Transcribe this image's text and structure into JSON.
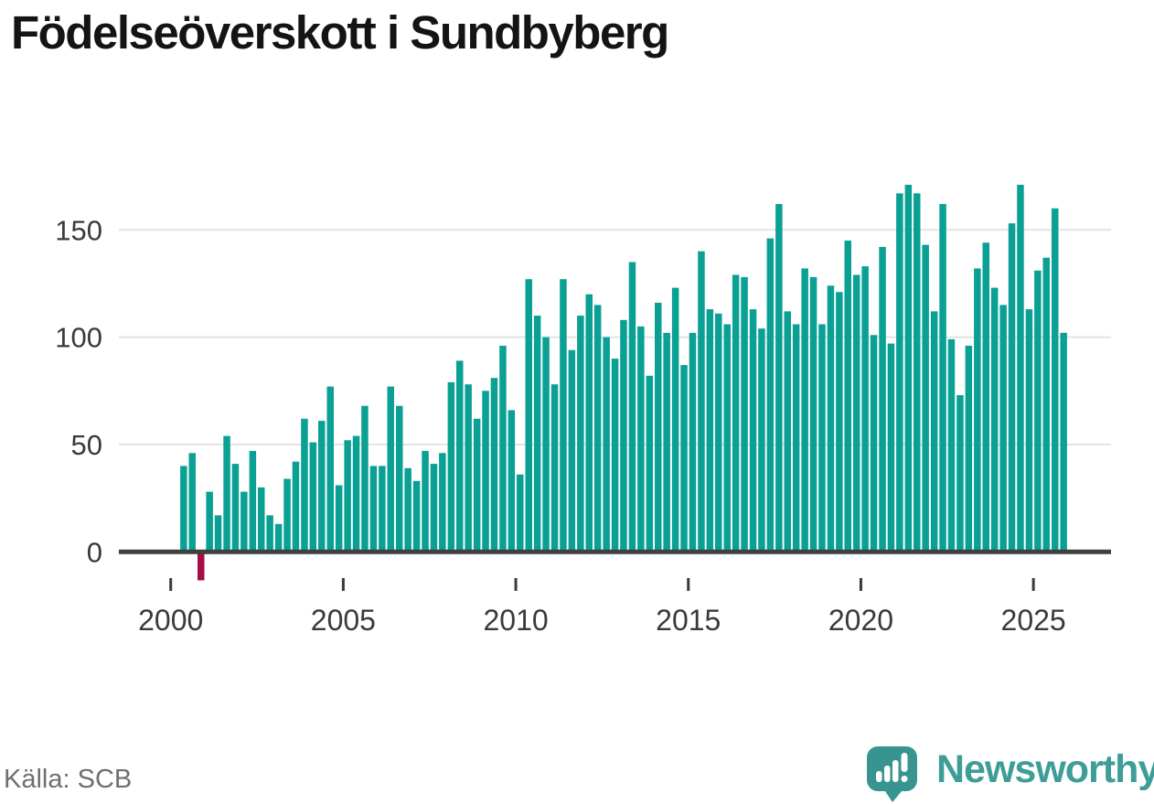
{
  "title": "Födelseöverskott i Sundbyberg",
  "source": "Källa: SCB",
  "brand": {
    "name": "Newsworthy"
  },
  "colors": {
    "bar_positive": "#0aa094",
    "bar_negative": "#a40d45",
    "grid": "#e4e4e4",
    "axis_line": "#404040",
    "axis_text": "#3a3a3a",
    "title_text": "#141414",
    "source_text": "#6f6f6f",
    "brand_teal": "#3f9d97",
    "brand_icon_teal": "#37948e"
  },
  "chart_data": {
    "type": "bar",
    "title": "Födelseöverskott i Sundbyberg",
    "xlabel": "",
    "ylabel": "",
    "frequency": "quarterly",
    "grid": true,
    "legend": "none",
    "ylim": [
      -15,
      180
    ],
    "yticks": [
      0,
      50,
      100,
      150
    ],
    "xticks": [
      2000,
      2005,
      2010,
      2015,
      2020,
      2025
    ],
    "x": [
      "2000Q2",
      "2000Q3",
      "2000Q4",
      "2001Q1",
      "2001Q2",
      "2001Q3",
      "2001Q4",
      "2002Q1",
      "2002Q2",
      "2002Q3",
      "2002Q4",
      "2003Q1",
      "2003Q2",
      "2003Q3",
      "2003Q4",
      "2004Q1",
      "2004Q2",
      "2004Q3",
      "2004Q4",
      "2005Q1",
      "2005Q2",
      "2005Q3",
      "2005Q4",
      "2006Q1",
      "2006Q2",
      "2006Q3",
      "2006Q4",
      "2007Q1",
      "2007Q2",
      "2007Q3",
      "2007Q4",
      "2008Q1",
      "2008Q2",
      "2008Q3",
      "2008Q4",
      "2009Q1",
      "2009Q2",
      "2009Q3",
      "2009Q4",
      "2010Q1",
      "2010Q2",
      "2010Q3",
      "2010Q4",
      "2011Q1",
      "2011Q2",
      "2011Q3",
      "2011Q4",
      "2012Q1",
      "2012Q2",
      "2012Q3",
      "2012Q4",
      "2013Q1",
      "2013Q2",
      "2013Q3",
      "2013Q4",
      "2014Q1",
      "2014Q2",
      "2014Q3",
      "2014Q4",
      "2015Q1",
      "2015Q2",
      "2015Q3",
      "2015Q4",
      "2016Q1",
      "2016Q2",
      "2016Q3",
      "2016Q4",
      "2017Q1",
      "2017Q2",
      "2017Q3",
      "2017Q4",
      "2018Q1",
      "2018Q2",
      "2018Q3",
      "2018Q4",
      "2019Q1",
      "2019Q2",
      "2019Q3",
      "2019Q4",
      "2020Q1",
      "2020Q2",
      "2020Q3",
      "2020Q4",
      "2021Q1",
      "2021Q2",
      "2021Q3",
      "2021Q4",
      "2022Q1",
      "2022Q2",
      "2022Q3",
      "2022Q4",
      "2023Q1",
      "2023Q2",
      "2023Q3",
      "2023Q4",
      "2024Q1",
      "2024Q2",
      "2024Q3",
      "2024Q4",
      "2025Q1",
      "2025Q2",
      "2025Q3",
      "2025Q4"
    ],
    "values": [
      40,
      46,
      -12,
      28,
      17,
      54,
      41,
      28,
      47,
      30,
      17,
      13,
      34,
      42,
      62,
      51,
      61,
      77,
      31,
      52,
      54,
      68,
      40,
      40,
      77,
      68,
      39,
      33,
      47,
      41,
      46,
      79,
      89,
      78,
      62,
      75,
      81,
      96,
      66,
      36,
      127,
      110,
      100,
      78,
      127,
      94,
      110,
      120,
      115,
      100,
      90,
      108,
      135,
      105,
      82,
      116,
      102,
      123,
      87,
      102,
      140,
      113,
      111,
      106,
      129,
      128,
      113,
      104,
      146,
      162,
      112,
      106,
      132,
      128,
      106,
      124,
      121,
      145,
      129,
      133,
      101,
      142,
      97,
      167,
      171,
      167,
      143,
      112,
      162,
      99,
      73,
      96,
      132,
      144,
      123,
      115,
      153,
      171,
      113,
      131,
      137,
      160,
      102
    ]
  }
}
